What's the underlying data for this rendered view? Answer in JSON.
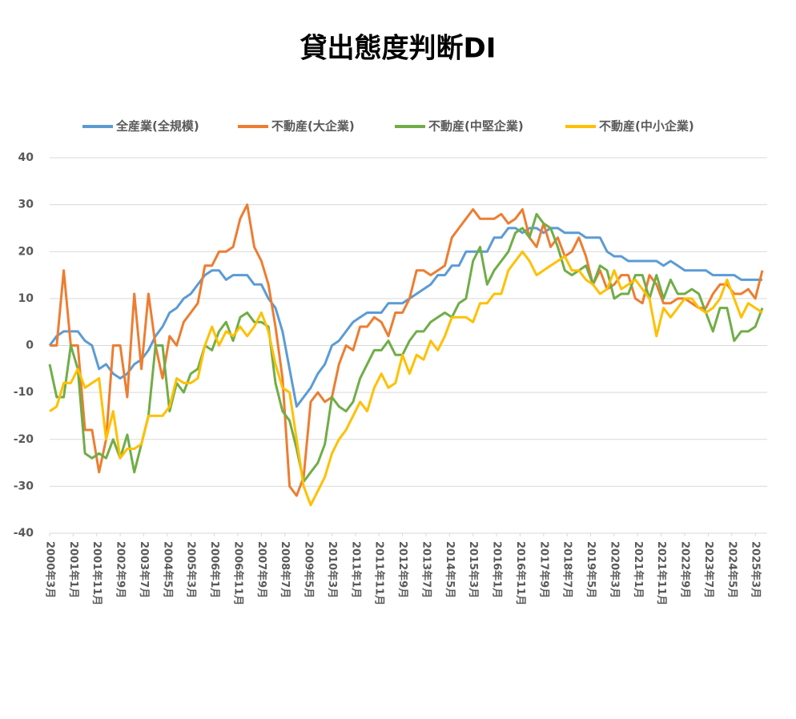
{
  "chart_data": {
    "type": "line",
    "title": "貸出態度判断DI",
    "x": [
      "2000-03",
      "2000-06",
      "2000-09",
      "2000-12",
      "2001-03",
      "2001-06",
      "2001-09",
      "2001-12",
      "2002-03",
      "2002-06",
      "2002-09",
      "2002-12",
      "2003-03",
      "2003-06",
      "2003-09",
      "2003-12",
      "2004-03",
      "2004-06",
      "2004-09",
      "2004-12",
      "2005-03",
      "2005-06",
      "2005-09",
      "2005-12",
      "2006-03",
      "2006-06",
      "2006-09",
      "2006-12",
      "2007-03",
      "2007-06",
      "2007-09",
      "2007-12",
      "2008-03",
      "2008-06",
      "2008-09",
      "2008-12",
      "2009-03",
      "2009-06",
      "2009-09",
      "2009-12",
      "2010-03",
      "2010-06",
      "2010-09",
      "2010-12",
      "2011-03",
      "2011-06",
      "2011-09",
      "2011-12",
      "2012-03",
      "2012-06",
      "2012-09",
      "2012-12",
      "2013-03",
      "2013-06",
      "2013-09",
      "2013-12",
      "2014-03",
      "2014-06",
      "2014-09",
      "2014-12",
      "2015-03",
      "2015-06",
      "2015-09",
      "2015-12",
      "2016-03",
      "2016-06",
      "2016-09",
      "2016-12",
      "2017-03",
      "2017-06",
      "2017-09",
      "2017-12",
      "2018-03",
      "2018-06",
      "2018-09",
      "2018-12",
      "2019-03",
      "2019-06",
      "2019-09",
      "2019-12",
      "2020-03",
      "2020-06",
      "2020-09",
      "2020-12",
      "2021-03",
      "2021-06",
      "2021-09",
      "2021-12",
      "2022-03",
      "2022-06",
      "2022-09",
      "2022-12",
      "2023-03",
      "2023-06",
      "2023-09",
      "2023-12",
      "2024-03",
      "2024-06",
      "2024-09",
      "2024-12",
      "2025-03",
      "2025-06"
    ],
    "series": [
      {
        "name": "全産業(全規模)",
        "color": "#5b9bd5",
        "values": [
          0,
          2,
          3,
          3,
          3,
          1,
          0,
          -5,
          -4,
          -6,
          -7,
          -6,
          -4,
          -3,
          -1,
          2,
          4,
          7,
          8,
          10,
          11,
          13,
          15,
          16,
          16,
          14,
          15,
          15,
          15,
          13,
          13,
          10,
          8,
          3,
          -5,
          -13,
          -11,
          -9,
          -6,
          -4,
          0,
          1,
          3,
          5,
          6,
          7,
          7,
          7,
          9,
          9,
          9,
          10,
          11,
          12,
          13,
          15,
          15,
          17,
          17,
          20,
          20,
          20,
          20,
          23,
          23,
          25,
          25,
          24,
          25,
          25,
          24,
          25,
          25,
          24,
          24,
          24,
          23,
          23,
          23,
          20,
          19,
          19,
          18,
          18,
          18,
          18,
          18,
          17,
          18,
          17,
          16,
          16,
          16,
          16,
          15,
          15,
          15,
          15,
          14,
          14,
          14,
          14
        ]
      },
      {
        "name": "不動産(大企業)",
        "color": "#ed7d31",
        "values": [
          0,
          0,
          16,
          0,
          0,
          -18,
          -18,
          -27,
          -20,
          0,
          0,
          -11,
          11,
          -5,
          11,
          0,
          -7,
          2,
          0,
          5,
          7,
          9,
          17,
          17,
          20,
          20,
          21,
          27,
          30,
          21,
          18,
          13,
          4,
          -7,
          -30,
          -32,
          -28,
          -12,
          -10,
          -12,
          -11,
          -4,
          0,
          -1,
          4,
          4,
          6,
          5,
          2,
          7,
          7,
          10,
          16,
          16,
          15,
          16,
          17,
          23,
          25,
          27,
          29,
          27,
          27,
          27,
          28,
          26,
          27,
          29,
          23,
          21,
          26,
          21,
          23,
          19,
          20,
          23,
          19,
          13,
          16,
          12,
          13,
          15,
          15,
          10,
          9,
          15,
          13,
          9,
          9,
          10,
          10,
          9,
          8,
          8,
          11,
          13,
          13,
          11,
          11,
          12,
          10,
          16
        ]
      },
      {
        "name": "不動産(中堅企業)",
        "color": "#70ad47",
        "values": [
          -4,
          -11,
          -11,
          0,
          -5,
          -23,
          -24,
          -23,
          -24,
          -20,
          -24,
          -19,
          -27,
          -21,
          -15,
          0,
          0,
          -14,
          -8,
          -10,
          -6,
          -5,
          0,
          -1,
          3,
          5,
          1,
          6,
          7,
          5,
          5,
          4,
          -8,
          -14,
          -16,
          -22,
          -29,
          -27,
          -25,
          -21,
          -11,
          -13,
          -14,
          -12,
          -7,
          -4,
          -1,
          -1,
          1,
          -2,
          -2,
          1,
          3,
          3,
          5,
          6,
          7,
          6,
          9,
          10,
          18,
          21,
          13,
          16,
          18,
          20,
          24,
          25,
          23,
          28,
          26,
          25,
          21,
          16,
          15,
          16,
          17,
          13,
          17,
          16,
          10,
          11,
          11,
          15,
          15,
          10,
          15,
          10,
          14,
          11,
          11,
          12,
          11,
          7,
          3,
          8,
          8,
          1,
          3,
          3,
          4,
          8
        ]
      },
      {
        "name": "不動産(中小企業)",
        "color": "#ffc000",
        "values": [
          -14,
          -13,
          -8,
          -8,
          -5,
          -9,
          -8,
          -7,
          -20,
          -14,
          -24,
          -22,
          -22,
          -21,
          -15,
          -15,
          -15,
          -13,
          -7,
          -8,
          -8,
          -7,
          0,
          4,
          0,
          3,
          2,
          4,
          2,
          4,
          7,
          3,
          -4,
          -9,
          -10,
          -20,
          -30,
          -34,
          -31,
          -28,
          -23,
          -20,
          -18,
          -15,
          -12,
          -14,
          -9,
          -6,
          -9,
          -8,
          -2,
          -6,
          -2,
          -3,
          1,
          -1,
          2,
          6,
          6,
          6,
          5,
          9,
          9,
          11,
          11,
          16,
          18,
          20,
          18,
          15,
          16,
          17,
          18,
          19,
          16,
          16,
          14,
          13,
          11,
          12,
          16,
          12,
          13,
          14,
          12,
          10,
          2,
          8,
          6,
          8,
          10,
          10,
          8,
          7,
          8,
          10,
          14,
          10,
          6,
          9,
          8,
          7
        ]
      }
    ],
    "xlim": [
      "2000-03",
      "2025-06"
    ],
    "xticks": [
      {
        "value": "2000-03",
        "label": "2000年3月"
      },
      {
        "value": "2001-01",
        "label": "2001年1月"
      },
      {
        "value": "2001-11",
        "label": "2001年11月"
      },
      {
        "value": "2002-09",
        "label": "2002年9月"
      },
      {
        "value": "2003-07",
        "label": "2003年7月"
      },
      {
        "value": "2004-05",
        "label": "2004年5月"
      },
      {
        "value": "2005-03",
        "label": "2005年3月"
      },
      {
        "value": "2006-01",
        "label": "2006年1月"
      },
      {
        "value": "2006-11",
        "label": "2006年11月"
      },
      {
        "value": "2007-09",
        "label": "2007年9月"
      },
      {
        "value": "2008-07",
        "label": "2008年7月"
      },
      {
        "value": "2009-05",
        "label": "2009年5月"
      },
      {
        "value": "2010-03",
        "label": "2010年3月"
      },
      {
        "value": "2011-01",
        "label": "2011年1月"
      },
      {
        "value": "2011-11",
        "label": "2011年11月"
      },
      {
        "value": "2012-09",
        "label": "2012年9月"
      },
      {
        "value": "2013-07",
        "label": "2013年7月"
      },
      {
        "value": "2014-05",
        "label": "2014年5月"
      },
      {
        "value": "2015-03",
        "label": "2015年3月"
      },
      {
        "value": "2016-01",
        "label": "2016年1月"
      },
      {
        "value": "2016-11",
        "label": "2016年11月"
      },
      {
        "value": "2017-09",
        "label": "2017年9月"
      },
      {
        "value": "2018-07",
        "label": "2018年7月"
      },
      {
        "value": "2019-05",
        "label": "2019年5月"
      },
      {
        "value": "2020-03",
        "label": "2020年3月"
      },
      {
        "value": "2021-01",
        "label": "2021年1月"
      },
      {
        "value": "2021-11",
        "label": "2021年11月"
      },
      {
        "value": "2022-09",
        "label": "2022年9月"
      },
      {
        "value": "2023-07",
        "label": "2023年7月"
      },
      {
        "value": "2024-05",
        "label": "2024年5月"
      },
      {
        "value": "2025-03",
        "label": "2025年3月"
      }
    ],
    "ylim": [
      -40,
      40
    ],
    "yticks": [
      -40,
      -30,
      -20,
      -10,
      0,
      10,
      20,
      30,
      40
    ],
    "grid": true,
    "legend": "top"
  }
}
